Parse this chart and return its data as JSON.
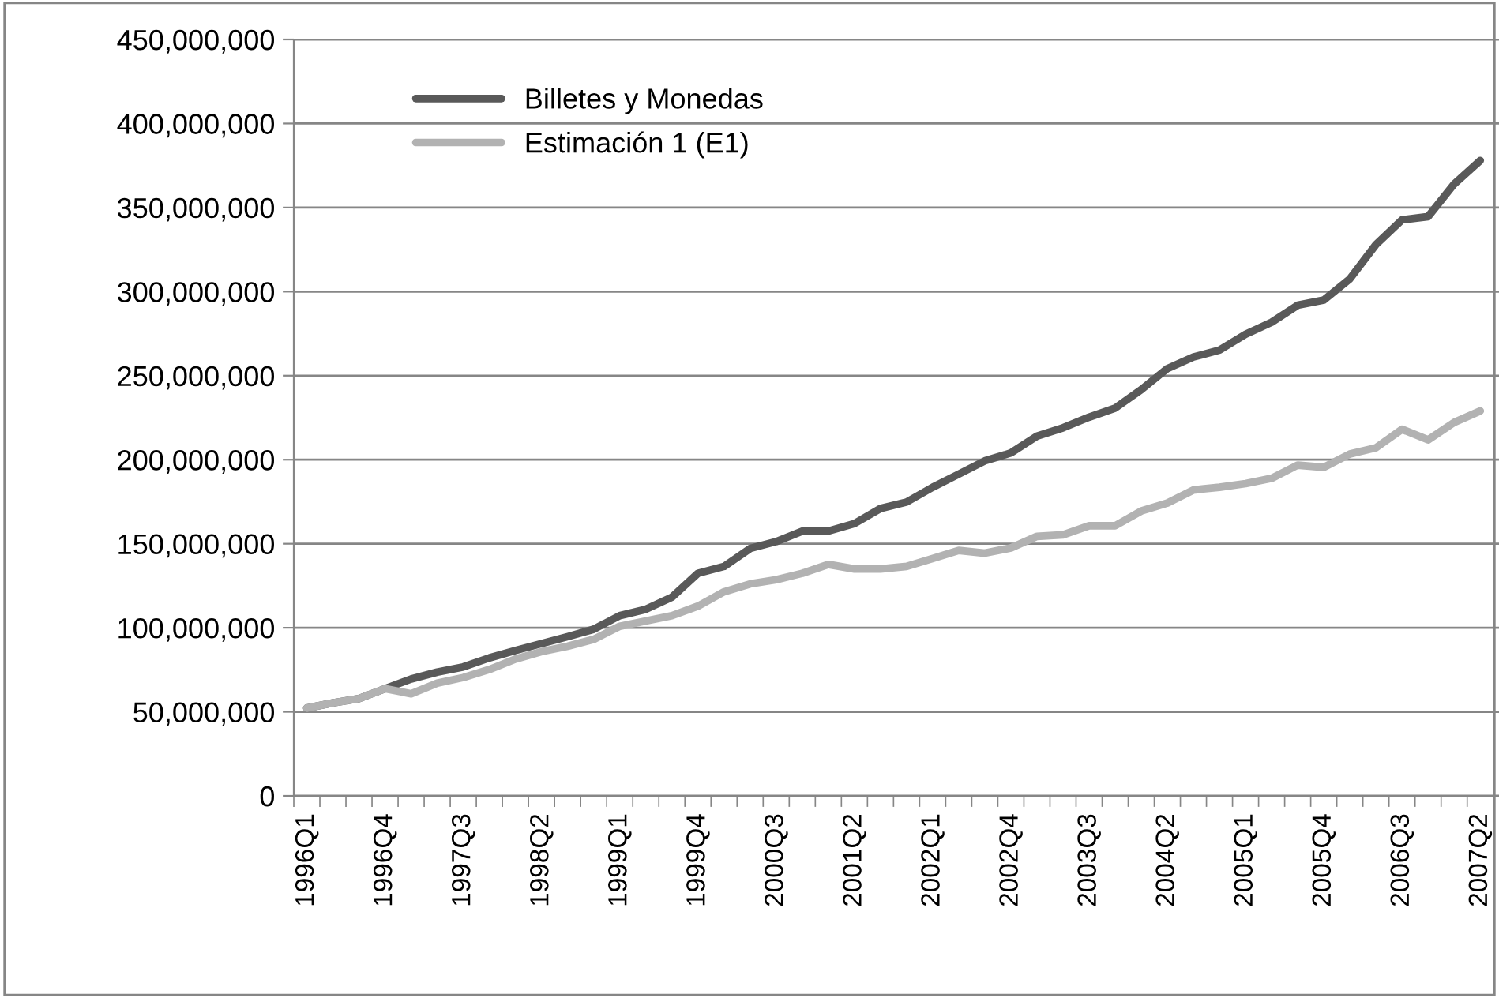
{
  "chart_data": {
    "type": "line",
    "categories": [
      "1996Q1",
      null,
      null,
      "1996Q4",
      null,
      null,
      "1997Q3",
      null,
      null,
      "1998Q2",
      null,
      null,
      "1999Q1",
      null,
      null,
      "1999Q4",
      null,
      null,
      "2000Q3",
      null,
      null,
      "2001Q2",
      null,
      null,
      "2002Q1",
      null,
      null,
      "2002Q4",
      null,
      null,
      "2003Q3",
      null,
      null,
      "2004Q2",
      null,
      null,
      "2005Q1",
      null,
      null,
      "2005Q4",
      null,
      null,
      "2006Q3",
      null,
      null,
      "2007Q2"
    ],
    "series": [
      {
        "name": "Billetes y Monedas",
        "color": "#595959",
        "values": [
          52200000,
          55300000,
          57900000,
          63800000,
          69500000,
          73600000,
          76700000,
          82100000,
          86500000,
          90600000,
          94700000,
          99100000,
          107200000,
          111000000,
          118200000,
          132400000,
          136500000,
          147200000,
          151300000,
          157500000,
          157500000,
          162000000,
          171000000,
          174800000,
          183600000,
          191400000,
          199300000,
          204000000,
          214000000,
          219000000,
          225300000,
          230700000,
          241700000,
          254200000,
          261100000,
          265200000,
          274600000,
          281800000,
          291900000,
          295000000,
          307600000,
          328000000,
          342700000,
          344600000,
          364000000,
          378000000
        ]
      },
      {
        "name": "Estimación 1 (E1)",
        "color": "#b2b2b2",
        "values": [
          52200000,
          55300000,
          57900000,
          63800000,
          60700000,
          67000000,
          70400000,
          75200000,
          81400000,
          85800000,
          89000000,
          93100000,
          100900000,
          104000000,
          107200000,
          112900000,
          121400000,
          126100000,
          128600000,
          132400000,
          137700000,
          135000000,
          135000000,
          136500000,
          141200000,
          146000000,
          144400000,
          147500000,
          154400000,
          155300000,
          160700000,
          160700000,
          169500000,
          174200000,
          182000000,
          183600000,
          185800000,
          188900000,
          196800000,
          195500000,
          203400000,
          207100000,
          218100000,
          211800000,
          222200000,
          229000000
        ]
      }
    ],
    "ylim": [
      0,
      450000000
    ],
    "yticks": [
      0,
      {
        "value": 50000000,
        "label": "50,000,000"
      },
      {
        "value": 100000000,
        "label": "100,000,000"
      },
      {
        "value": 150000000,
        "label": "150,000,000"
      },
      {
        "value": 200000000,
        "label": "200,000,000"
      },
      {
        "value": 250000000,
        "label": "250,000,000"
      },
      {
        "value": 300000000,
        "label": "300,000,000"
      },
      {
        "value": 350000000,
        "label": "350,000,000"
      },
      {
        "value": 400000000,
        "label": "400,000,000"
      },
      {
        "value": 450000000,
        "label": "450,000,000"
      }
    ],
    "grid": "y",
    "legend": "top left",
    "marker": "none",
    "line_style": "solid"
  }
}
